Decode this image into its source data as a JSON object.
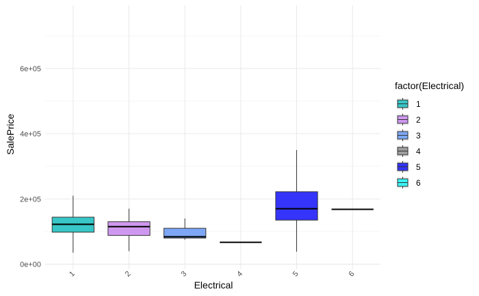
{
  "chart_data": {
    "type": "boxplot",
    "xlabel": "Electrical",
    "ylabel": "SalePrice",
    "ylim": [
      0,
      760000
    ],
    "yticks": [
      0,
      200000,
      400000,
      600000
    ],
    "ytick_labels": [
      "0e+00",
      "2e+05",
      "4e+05",
      "6e+05"
    ],
    "grid": true,
    "legend": {
      "title": "factor(Electrical)",
      "position": "right"
    },
    "categories": [
      "1",
      "2",
      "3",
      "4",
      "5",
      "6"
    ],
    "boxes": [
      {
        "category": "1",
        "fill": "#38C6C6",
        "whisker_low": 35000,
        "q1": 98000,
        "median": 122000,
        "q3": 144000,
        "whisker_high": 210000
      },
      {
        "category": "2",
        "fill": "#CF98F0",
        "whisker_low": 40000,
        "q1": 88000,
        "median": 115000,
        "q3": 130000,
        "whisker_high": 170000
      },
      {
        "category": "3",
        "fill": "#7DA7F5",
        "whisker_low": 75000,
        "q1": 80000,
        "median": 84000,
        "q3": 110000,
        "whisker_high": 140000
      },
      {
        "category": "4",
        "fill": "#9E9E9E",
        "whisker_low": 67000,
        "q1": 67000,
        "median": 67000,
        "q3": 67000,
        "whisker_high": 67000
      },
      {
        "category": "5",
        "fill": "#3434FA",
        "whisker_low": 38000,
        "q1": 135000,
        "median": 170000,
        "q3": 222000,
        "whisker_high": 350000
      },
      {
        "category": "6",
        "fill": "#3AF4F4",
        "whisker_low": 168000,
        "q1": 168000,
        "median": 168000,
        "q3": 168000,
        "whisker_high": 168000
      }
    ]
  }
}
